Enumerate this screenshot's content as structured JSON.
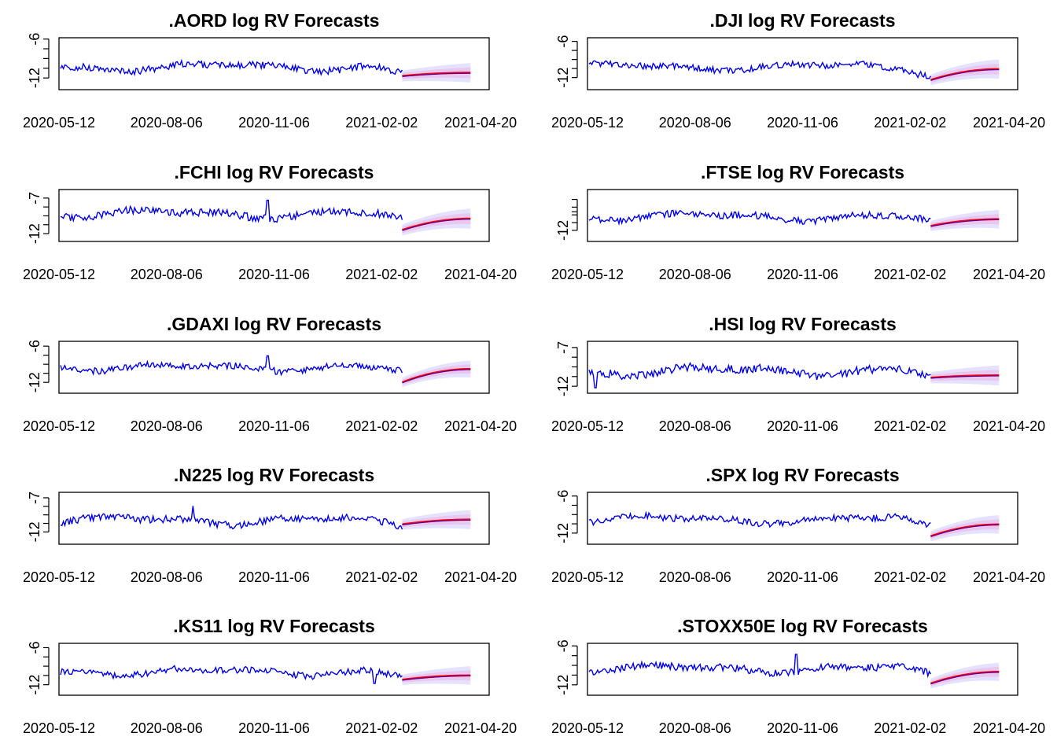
{
  "chart_data": [
    {
      "type": "line",
      "title": ".AORD log RV Forecasts",
      "ylim": [
        -13.8,
        -5.8
      ],
      "yticks": [
        "-6",
        "-12"
      ],
      "ytick_values": [
        -6,
        -12
      ],
      "level": -10.3,
      "seed": 3,
      "spikes": [],
      "fc_start": -11.7,
      "fc_end": -11.2,
      "band": 1.5
    },
    {
      "type": "line",
      "title": ".DJI log RV Forecasts",
      "ylim": [
        -14.0,
        -5.4
      ],
      "yticks": [
        "-6",
        "-12"
      ],
      "ytick_values": [
        -6,
        -12
      ],
      "level": -10.2,
      "seed": 7,
      "spikes": [],
      "fc_start": -12.4,
      "fc_end": -10.6,
      "band": 1.6
    },
    {
      "type": "line",
      "title": ".FCHI log RV Forecasts",
      "ylim": [
        -13.1,
        -5.8
      ],
      "yticks": [
        "-7",
        "-12"
      ],
      "ytick_values": [
        -7,
        -12
      ],
      "level": -9.2,
      "seed": 11,
      "spikes": [
        {
          "t": 0.485,
          "v": -7.3
        }
      ],
      "fc_start": -11.5,
      "fc_end": -9.9,
      "band": 1.4
    },
    {
      "type": "line",
      "title": ".FTSE log RV Forecasts",
      "ylim": [
        -13.8,
        -5.4
      ],
      "yticks": [
        "",
        "",
        "-12"
      ],
      "ytick_values": [
        -7,
        -9,
        -12
      ],
      "level": -9.8,
      "seed": 17,
      "spikes": [],
      "fc_start": -11.3,
      "fc_end": -10.2,
      "band": 1.5
    },
    {
      "type": "line",
      "title": ".GDAXI log RV Forecasts",
      "ylim": [
        -13.8,
        -5.2
      ],
      "yticks": [
        "-6",
        "-12"
      ],
      "ytick_values": [
        -6,
        -12
      ],
      "level": -9.5,
      "seed": 23,
      "spikes": [
        {
          "t": 0.485,
          "v": -7.6
        }
      ],
      "fc_start": -12.0,
      "fc_end": -9.8,
      "band": 1.4
    },
    {
      "type": "line",
      "title": ".HSI log RV Forecasts",
      "ylim": [
        -12.9,
        -6.2
      ],
      "yticks": [
        "-7",
        "-12"
      ],
      "ytick_values": [
        -7,
        -12
      ],
      "level": -10.0,
      "seed": 29,
      "spikes": [
        {
          "t": 0.015,
          "v": -12.2
        }
      ],
      "fc_start": -10.9,
      "fc_end": -10.6,
      "band": 1.3
    },
    {
      "type": "line",
      "title": ".N225 log RV Forecasts",
      "ylim": [
        -13.8,
        -6.2
      ],
      "yticks": [
        "-7",
        "-12"
      ],
      "ytick_values": [
        -7,
        -12
      ],
      "level": -10.3,
      "seed": 31,
      "spikes": [
        {
          "t": 0.31,
          "v": -8.2
        }
      ],
      "fc_start": -10.9,
      "fc_end": -10.2,
      "band": 1.4
    },
    {
      "type": "line",
      "title": ".SPX log RV Forecasts",
      "ylim": [
        -13.8,
        -5.4
      ],
      "yticks": [
        "-6",
        "-12"
      ],
      "ytick_values": [
        -6,
        -12
      ],
      "level": -9.8,
      "seed": 37,
      "spikes": [],
      "fc_start": -12.5,
      "fc_end": -10.6,
      "band": 1.5
    },
    {
      "type": "line",
      "title": ".KS11 log RV Forecasts",
      "ylim": [
        -13.7,
        -5.3
      ],
      "yticks": [
        "-6",
        "-12"
      ],
      "ytick_values": [
        -6,
        -12
      ],
      "level": -9.9,
      "seed": 41,
      "spikes": [
        {
          "t": 0.735,
          "v": -11.8
        },
        {
          "t": 0.915,
          "v": -13.6
        }
      ],
      "fc_start": -11.2,
      "fc_end": -10.5,
      "band": 1.5
    },
    {
      "type": "line",
      "title": ".STOXX50E log RV Forecasts",
      "ylim": [
        -13.6,
        -5.6
      ],
      "yticks": [
        "-6",
        "-12"
      ],
      "ytick_values": [
        -6,
        -12
      ],
      "level": -9.5,
      "seed": 43,
      "spikes": [
        {
          "t": 0.485,
          "v": -7.3
        }
      ],
      "fc_start": -11.8,
      "fc_end": -10.0,
      "band": 1.4
    }
  ],
  "xticks": [
    "2020-05-12",
    "2020-08-06",
    "2020-11-06",
    "2021-02-02",
    "2021-04-20"
  ],
  "colors": {
    "history": "#0000ee",
    "forecast_mean": "#ff0000",
    "forecast_median": "#0000ee",
    "band_outer": "#e4e2ff",
    "band_inner": "#e8c8f0",
    "frame": "#000000"
  }
}
